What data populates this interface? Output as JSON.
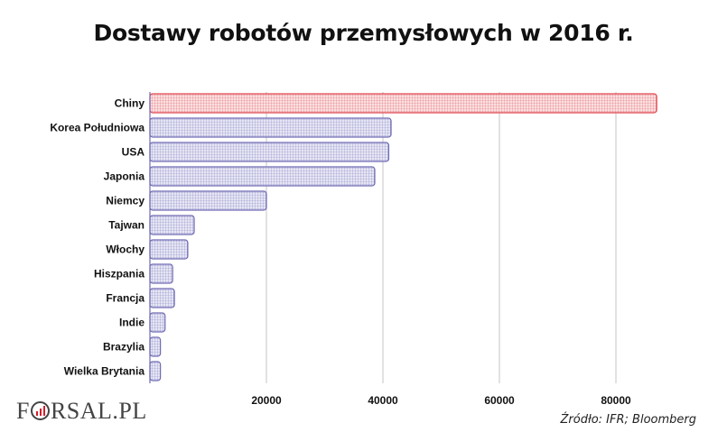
{
  "chart_data": {
    "type": "bar",
    "orientation": "horizontal",
    "title": "Dostawy robotów przemysłowych w 2016 r.",
    "categories": [
      "Chiny",
      "Korea Południowa",
      "USA",
      "Japonia",
      "Niemcy",
      "Tajwan",
      "Włochy",
      "Hiszpania",
      "Francja",
      "Indie",
      "Brazylia",
      "Wielka Brytania"
    ],
    "values": [
      87000,
      41400,
      41000,
      38600,
      20000,
      7600,
      6500,
      3900,
      4200,
      2600,
      1800,
      1800
    ],
    "xticks": [
      20000,
      40000,
      60000,
      80000
    ],
    "xlim": [
      0,
      90000
    ],
    "grid": "vertical",
    "colors": {
      "highlight": "#e0474f",
      "highlight_fill": "#f5c2c5",
      "bar": "#6f6bb3",
      "bar_fill": "#dcdcf0"
    }
  },
  "footer": {
    "logo_prefix": "F",
    "logo_suffix": "RSAL.PL",
    "source": "Źródło:  IFR; Bloomberg"
  }
}
